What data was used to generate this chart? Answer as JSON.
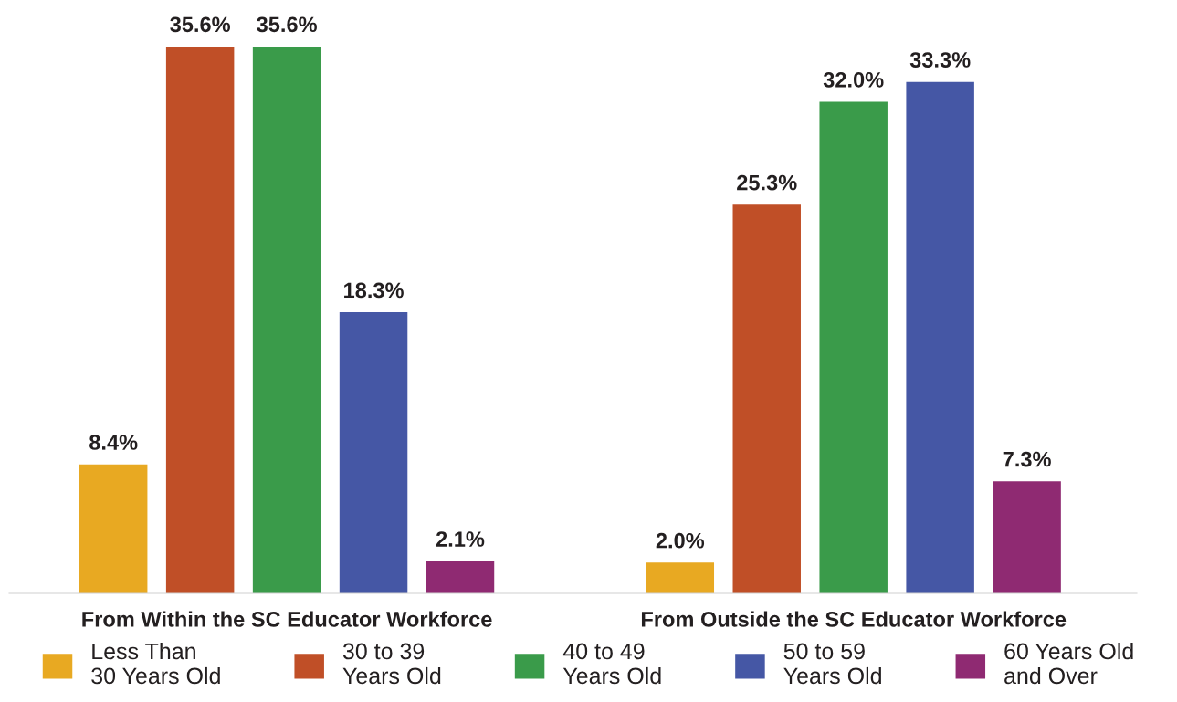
{
  "chart_data": {
    "type": "bar",
    "categories": [
      "From Within the SC Educator Workforce",
      "From Outside the SC Educator Workforce"
    ],
    "series": [
      {
        "name": "Less Than\n30 Years Old",
        "color": "#e8a922",
        "values": [
          8.4,
          2.0
        ],
        "value_labels": [
          "8.4%",
          "2.0%"
        ]
      },
      {
        "name": "30 to 39\nYears Old",
        "color": "#c04f27",
        "values": [
          35.6,
          25.3
        ],
        "value_labels": [
          "35.6%",
          "25.3%"
        ]
      },
      {
        "name": "40 to 49\nYears Old",
        "color": "#3a9b4a",
        "values": [
          35.6,
          32.0
        ],
        "value_labels": [
          "35.6%",
          "32.0%"
        ]
      },
      {
        "name": "50 to 59\nYears Old",
        "color": "#4557a5",
        "values": [
          18.3,
          33.3
        ],
        "value_labels": [
          "18.3%",
          "33.3%"
        ]
      },
      {
        "name": "60 Years Old\nand Over",
        "color": "#8f2a72",
        "values": [
          2.1,
          7.3
        ],
        "value_labels": [
          "2.1%",
          "7.3%"
        ]
      }
    ],
    "legend": "bottom",
    "grid": false,
    "tick_labels": "x"
  }
}
